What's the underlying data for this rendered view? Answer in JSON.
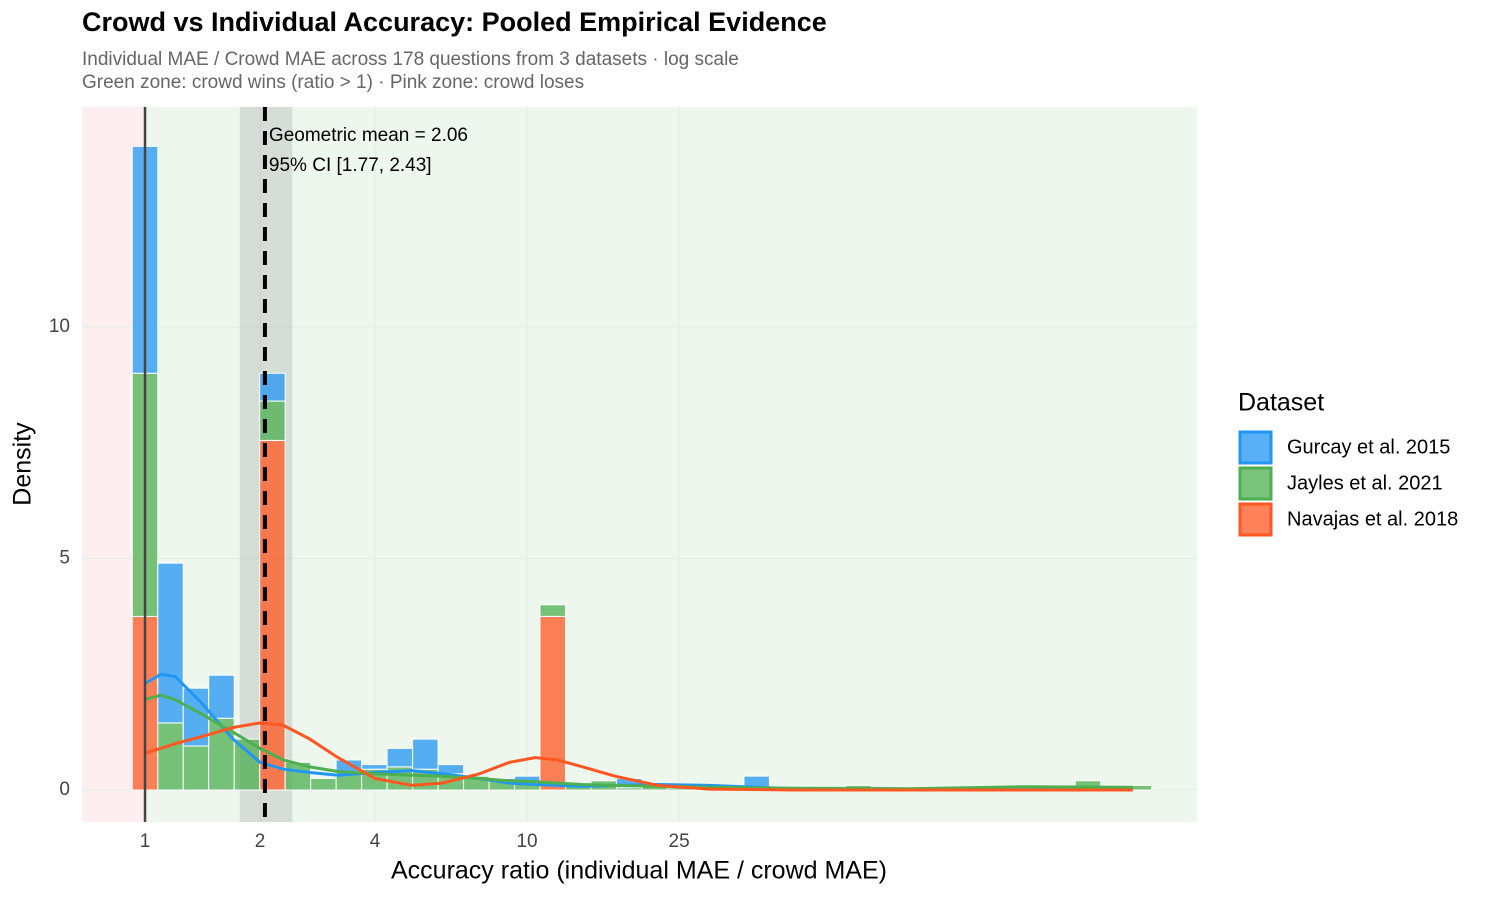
{
  "chart_data": {
    "type": "histogram",
    "title": "Crowd vs Individual Accuracy: Pooled Empirical Evidence",
    "subtitle": [
      "Individual MAE / Crowd MAE across 178 questions from 3 datasets  ·  log scale",
      "Green zone: crowd wins (ratio > 1)  ·  Pink zone: crowd loses"
    ],
    "x_label": "Accuracy ratio  (individual MAE / crowd MAE)",
    "y_label": "Density",
    "legend_title": "Dataset",
    "legend_position": "right",
    "x_log": true,
    "grid": true,
    "xlim": [
      0.684,
      567
    ],
    "ylim": [
      -0.69,
      14.75
    ],
    "xticks": [
      1,
      2,
      4,
      10,
      25
    ],
    "yticks": [
      0,
      5,
      10
    ],
    "reference_line": 1,
    "mean": 2.06,
    "ci": [
      1.77,
      2.43
    ],
    "annotations": [
      "Geometric mean = 2.06",
      "95% CI [1.77, 2.43]"
    ],
    "bins": [
      0.926,
      1.08,
      1.259,
      1.468,
      1.712,
      1.996,
      2.327,
      2.714,
      3.164,
      3.69,
      4.302,
      5.017,
      5.849,
      6.821,
      7.953,
      9.274,
      10.81,
      12.61,
      14.7,
      17.14,
      19.99,
      23.31,
      27.18,
      31.69,
      36.95,
      43.09,
      50.24,
      58.58,
      68.31,
      79.65,
      92.88,
      108.3,
      126.3,
      147.2,
      171.7,
      200.2,
      233.5,
      272.2,
      317.4,
      370.1,
      431.6
    ],
    "density_x": [
      1,
      1.1,
      1.2,
      1.4,
      1.7,
      2,
      2.3,
      2.7,
      3.2,
      4,
      5,
      6,
      7.5,
      9,
      10.5,
      12,
      14,
      17,
      22,
      30,
      50,
      100,
      200,
      385
    ],
    "series": [
      {
        "name": "Gurcay et al. 2015",
        "color": "#2196f3",
        "values": [
          4.9,
          3.45,
          1.25,
          0.93,
          0,
          0.6,
          0,
          0,
          0.25,
          0.1,
          0.4,
          0.65,
          0.2,
          0,
          0.05,
          0.15,
          0,
          0.05,
          0,
          0.2,
          0,
          0.05,
          0.05,
          0,
          0.3,
          0,
          0,
          0,
          0,
          0,
          0,
          0,
          0,
          0,
          0,
          0,
          0,
          0,
          0,
          0
        ],
        "density": [
          2.3,
          2.5,
          2.45,
          1.9,
          1.1,
          0.6,
          0.45,
          0.38,
          0.32,
          0.38,
          0.42,
          0.35,
          0.25,
          0.15,
          0.12,
          0.1,
          0.08,
          0.1,
          0.12,
          0.1,
          0.03,
          0.01,
          0.01,
          0.01
        ]
      },
      {
        "name": "Jayles et al. 2021",
        "color": "#4caf50",
        "values": [
          5.25,
          1.45,
          0.95,
          1.55,
          1.1,
          0.85,
          0.6,
          0.25,
          0.4,
          0.45,
          0.5,
          0.45,
          0.35,
          0.3,
          0.2,
          0.15,
          0.25,
          0.1,
          0.2,
          0.05,
          0.1,
          0.05,
          0.05,
          0,
          0,
          0,
          0,
          0,
          0.1,
          0,
          0,
          0,
          0,
          0,
          0,
          0.05,
          0.05,
          0.2,
          0.1,
          0.1
        ],
        "density": [
          1.95,
          2.05,
          1.95,
          1.65,
          1.25,
          0.9,
          0.65,
          0.5,
          0.4,
          0.35,
          0.32,
          0.3,
          0.25,
          0.2,
          0.18,
          0.15,
          0.12,
          0.1,
          0.08,
          0.06,
          0.04,
          0.03,
          0.07,
          0.06
        ]
      },
      {
        "name": "Navajas et al. 2018",
        "color": "#ff5722",
        "values": [
          3.75,
          0,
          0,
          0,
          0,
          7.55,
          0,
          0,
          0,
          0,
          0,
          0,
          0,
          0,
          0,
          0,
          3.75,
          0,
          0,
          0,
          0,
          0,
          0,
          0,
          0,
          0,
          0,
          0,
          0,
          0,
          0,
          0,
          0,
          0,
          0,
          0,
          0,
          0,
          0,
          0
        ],
        "density": [
          0.8,
          0.9,
          1.0,
          1.15,
          1.35,
          1.45,
          1.4,
          1.1,
          0.7,
          0.25,
          0.1,
          0.15,
          0.35,
          0.6,
          0.7,
          0.65,
          0.5,
          0.3,
          0.1,
          0.02,
          0,
          0,
          0,
          0
        ]
      }
    ]
  }
}
